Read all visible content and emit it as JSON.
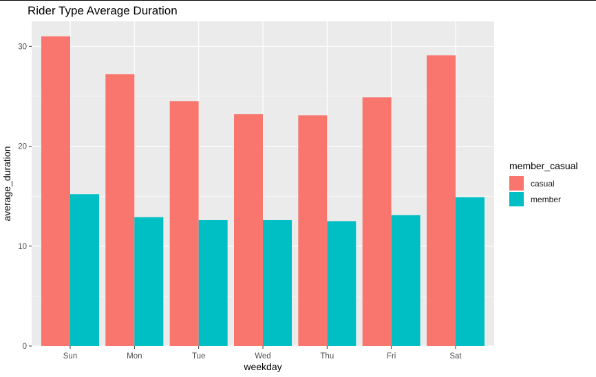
{
  "chart_data": {
    "type": "bar",
    "title": "Rider Type Average Duration",
    "xlabel": "weekday",
    "ylabel": "average_duration",
    "categories": [
      "Sun",
      "Mon",
      "Tue",
      "Wed",
      "Thu",
      "Fri",
      "Sat"
    ],
    "series": [
      {
        "name": "casual",
        "color": "#F8766D",
        "values": [
          31.0,
          27.2,
          24.5,
          23.2,
          23.1,
          24.9,
          29.1
        ]
      },
      {
        "name": "member",
        "color": "#00BFC4",
        "values": [
          15.2,
          12.9,
          12.6,
          12.6,
          12.5,
          13.1,
          14.9
        ]
      }
    ],
    "ylim": [
      0,
      32.5
    ],
    "yticks": [
      0,
      10,
      20,
      30
    ],
    "legend_title": "member_casual",
    "legend_position": "right",
    "grid": true,
    "panel_background": "#EBEBEB"
  }
}
